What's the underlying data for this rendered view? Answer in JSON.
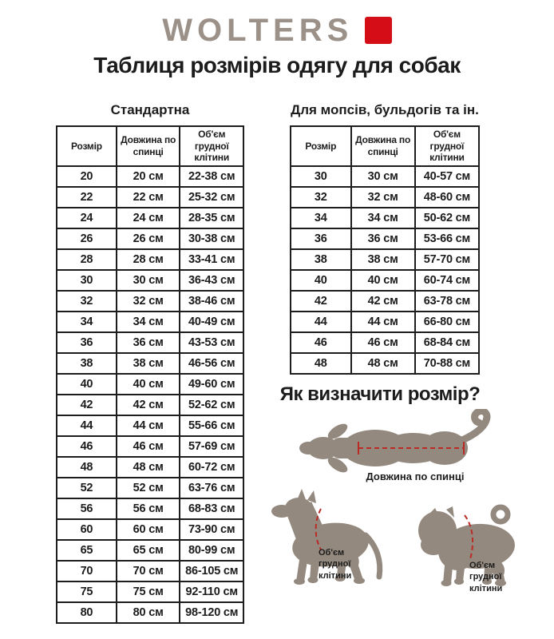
{
  "brand": {
    "name": "WOLTERS"
  },
  "page_title": "Таблиця розмірів одягу для собак",
  "tables": {
    "standard": {
      "title": "Стандартна",
      "columns": [
        "Розмір",
        "Довжина по\nспинці",
        "Об'єм грудної\nклітини"
      ],
      "rows": [
        [
          "20",
          "20 см",
          "22-38 см"
        ],
        [
          "22",
          "22 см",
          "25-32 см"
        ],
        [
          "24",
          "24 см",
          "28-35 см"
        ],
        [
          "26",
          "26 см",
          "30-38 см"
        ],
        [
          "28",
          "28 см",
          "33-41 см"
        ],
        [
          "30",
          "30 см",
          "36-43 см"
        ],
        [
          "32",
          "32 см",
          "38-46 см"
        ],
        [
          "34",
          "34 см",
          "40-49 см"
        ],
        [
          "36",
          "36 см",
          "43-53 см"
        ],
        [
          "38",
          "38 см",
          "46-56 см"
        ],
        [
          "40",
          "40 см",
          "49-60 см"
        ],
        [
          "42",
          "42 см",
          "52-62 см"
        ],
        [
          "44",
          "44 см",
          "55-66 см"
        ],
        [
          "46",
          "46 см",
          "57-69 см"
        ],
        [
          "48",
          "48 см",
          "60-72 см"
        ],
        [
          "52",
          "52 см",
          "63-76 см"
        ],
        [
          "56",
          "56 см",
          "68-83 см"
        ],
        [
          "60",
          "60 см",
          "73-90 см"
        ],
        [
          "65",
          "65 см",
          "80-99 см"
        ],
        [
          "70",
          "70 см",
          "86-105 см"
        ],
        [
          "75",
          "75 см",
          "92-110 см"
        ],
        [
          "80",
          "80 см",
          "98-120 см"
        ]
      ]
    },
    "pugs_bulldogs": {
      "title": "Для мопсів, бульдогів та ін.",
      "columns": [
        "Розмір",
        "Довжина по\nспинці",
        "Об'єм грудної\nклітини"
      ],
      "rows": [
        [
          "30",
          "30 см",
          "40-57 см"
        ],
        [
          "32",
          "32 см",
          "48-60 см"
        ],
        [
          "34",
          "34 см",
          "50-62 см"
        ],
        [
          "36",
          "36 см",
          "53-66 см"
        ],
        [
          "38",
          "38 см",
          "57-70 см"
        ],
        [
          "40",
          "40 см",
          "60-74 см"
        ],
        [
          "42",
          "42 см",
          "63-78 см"
        ],
        [
          "44",
          "44 см",
          "66-80 см"
        ],
        [
          "46",
          "46 см",
          "68-84 см"
        ],
        [
          "48",
          "48 см",
          "70-88 см"
        ]
      ]
    }
  },
  "guide": {
    "title": "Як визначити розмір?",
    "back_length_label": "Довжина по спинці",
    "chest_label": "Об'єм\nгрудної\nклітини"
  },
  "colors": {
    "brand_red": "#d40d17",
    "logo_gray": "#9b9189",
    "silhouette": "#94897f",
    "measure_red": "#bb2b26",
    "ink": "#1c1c1c"
  }
}
